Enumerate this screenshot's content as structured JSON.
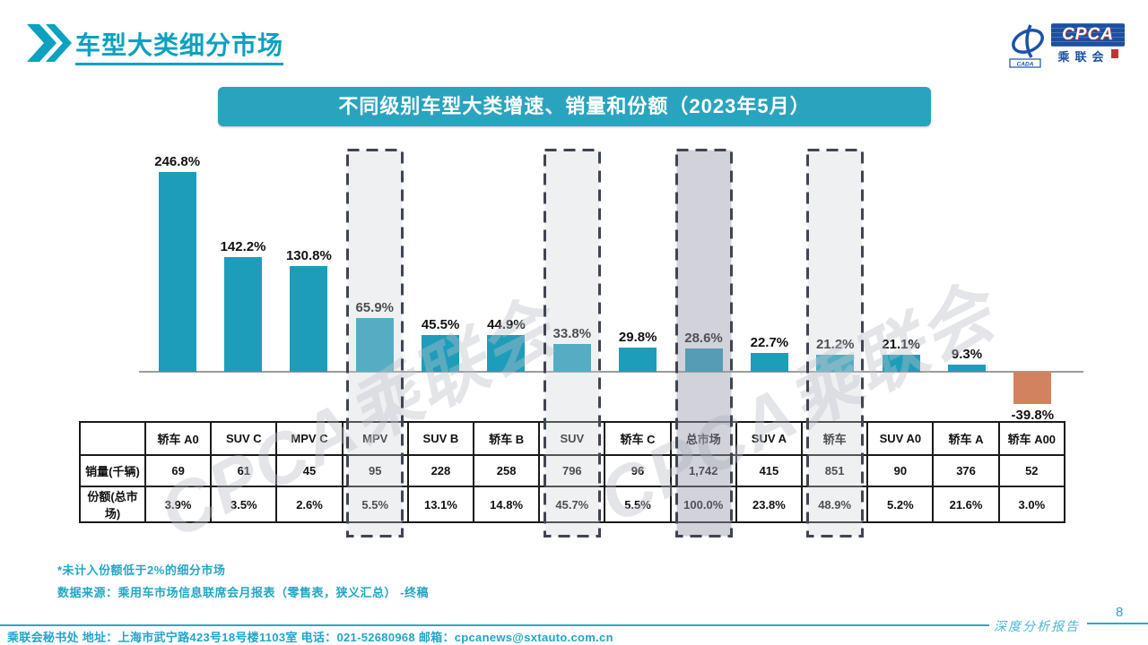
{
  "header": {
    "title": "车型大类细分市场"
  },
  "logo": {
    "cpca": "CPCA",
    "cada": "CADA",
    "cn": "乘联会"
  },
  "banner": {
    "title": "不同级别车型大类增速、销量和份额（2023年5月）"
  },
  "watermark": {
    "text": "CPCA乘联会"
  },
  "chart_data": {
    "type": "bar",
    "title": "不同级别车型大类增速、销量和份额（2023年5月）",
    "unit": "%",
    "grid": false,
    "ylim": [
      -60,
      270
    ],
    "bar_color": "#1E9DBA",
    "negative_bar_color": "#D3825F",
    "categories": [
      "轿车 A0",
      "SUV C",
      "MPV C",
      "MPV",
      "SUV B",
      "轿车 B",
      "SUV",
      "轿车 C",
      "总市场",
      "SUV A",
      "轿车",
      "SUV A0",
      "轿车 A",
      "轿车 A00"
    ],
    "series": [
      {
        "name": "增速",
        "values": [
          246.8,
          142.2,
          130.8,
          65.9,
          45.5,
          44.9,
          33.8,
          29.8,
          28.6,
          22.7,
          21.2,
          21.1,
          9.3,
          -39.8
        ],
        "labels": [
          "246.8%",
          "142.2%",
          "130.8%",
          "65.9%",
          "45.5%",
          "44.9%",
          "33.8%",
          "29.8%",
          "28.6%",
          "22.7%",
          "21.2%",
          "21.1%",
          "9.3%",
          "-39.8%"
        ]
      }
    ],
    "table_rows": [
      {
        "label": "销量(千辆)",
        "values": [
          "69",
          "61",
          "45",
          "95",
          "228",
          "258",
          "796",
          "96",
          "1,742",
          "415",
          "851",
          "90",
          "376",
          "52"
        ]
      },
      {
        "label": "份额(总市场)",
        "values": [
          "3.9%",
          "3.5%",
          "2.6%",
          "5.5%",
          "13.1%",
          "14.8%",
          "45.7%",
          "5.5%",
          "100.0%",
          "23.8%",
          "48.9%",
          "5.2%",
          "21.6%",
          "3.0%"
        ]
      }
    ],
    "highlighted_categories": [
      "MPV",
      "SUV",
      "总市场",
      "轿车"
    ],
    "emphasized_category": "总市场"
  },
  "notes": {
    "note1": "*未计入份额低于2%的细分市场",
    "note2": "数据来源：乘用车市场信息联席会月报表（零售表，狭义汇总） -终稿"
  },
  "footer": {
    "contact": "乘联会秘书处  地址：上海市武宁路423号18号楼1103室 电话：021-52680968  邮箱：cpcanews@sxtauto.com.cn",
    "report_label": "深度分析报告",
    "page_number": "8"
  }
}
